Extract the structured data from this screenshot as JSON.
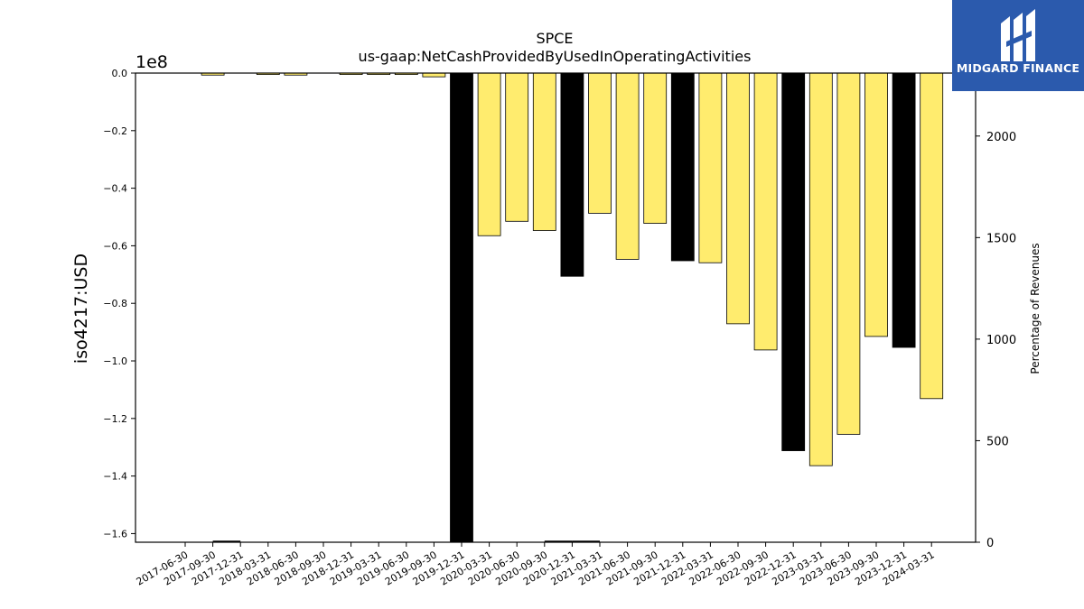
{
  "chart_data": {
    "type": "bar",
    "title": "SPCE",
    "subtitle": "us-gaap:NetCashProvidedByUsedInOperatingActivities",
    "ylabel": "iso4217:USD",
    "y_offset_label": "1e8",
    "y2label": "Percentage of Revenues",
    "ylim": [
      -1.63,
      0.0
    ],
    "y_unit_multiplier": 100000000,
    "y2lim": [
      0,
      2310
    ],
    "yticks": [
      "0.0",
      "−0.2",
      "−0.4",
      "−0.6",
      "−0.8",
      "−1.0",
      "−1.2",
      "−1.4",
      "−1.6"
    ],
    "ytick_values": [
      0.0,
      -0.2,
      -0.4,
      -0.6,
      -0.8,
      -1.0,
      -1.2,
      -1.4,
      -1.6
    ],
    "y2ticks": [
      "0",
      "500",
      "1000",
      "1500",
      "2000"
    ],
    "y2tick_values": [
      0,
      500,
      1000,
      1500,
      2000
    ],
    "categories": [
      "2017-06-30",
      "2017-09-30",
      "2017-12-31",
      "2018-03-31",
      "2018-06-30",
      "2018-09-30",
      "2018-12-31",
      "2019-03-31",
      "2019-06-30",
      "2019-09-30",
      "2019-12-31",
      "2020-03-31",
      "2020-06-30",
      "2020-09-30",
      "2020-12-31",
      "2021-03-31",
      "2021-06-30",
      "2021-09-30",
      "2021-12-31",
      "2022-03-31",
      "2022-06-30",
      "2022-09-30",
      "2022-12-31",
      "2023-03-31",
      "2023-06-30",
      "2023-09-30",
      "2023-12-31",
      "2024-03-31"
    ],
    "values": [
      null,
      -0.007,
      null,
      -0.005,
      -0.007,
      null,
      -0.005,
      -0.005,
      -0.005,
      -0.013,
      -1.63,
      -0.565,
      -0.515,
      -0.547,
      -0.706,
      -0.487,
      -0.647,
      -0.522,
      -0.652,
      -0.659,
      -0.871,
      -0.962,
      -1.312,
      -1.364,
      -1.255,
      -0.915,
      -0.953,
      -1.131
    ],
    "annual_flags": [
      false,
      false,
      false,
      false,
      false,
      false,
      false,
      false,
      false,
      false,
      true,
      false,
      false,
      false,
      true,
      false,
      false,
      false,
      true,
      false,
      false,
      false,
      true,
      false,
      false,
      false,
      true,
      false
    ],
    "annual_color": "#000000",
    "quarter_color": "#ffec6e",
    "revenue_pct_segments": [
      {
        "from": "2017-09-30",
        "to": "2017-12-31",
        "value": 0
      },
      {
        "from": "2020-09-30",
        "to": "2020-12-31",
        "value": 0
      },
      {
        "from": "2020-12-31",
        "to": "2021-03-31",
        "value": 0
      }
    ],
    "grid": false,
    "legend": "none"
  },
  "logo": {
    "text": "MIDGARD FINANCE",
    "background": "#2b5aad"
  }
}
